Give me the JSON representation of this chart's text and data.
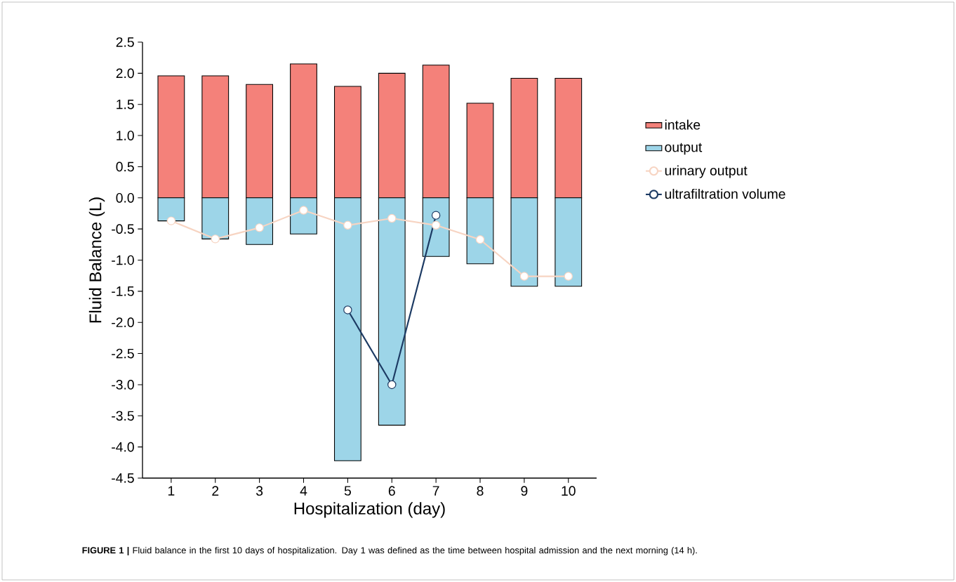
{
  "chart_data": {
    "type": "bar",
    "stacked": true,
    "xlabel": "Hospitalization (day)",
    "ylabel": "Fluid Balance (L)",
    "categories": [
      "1",
      "2",
      "3",
      "4",
      "5",
      "6",
      "7",
      "8",
      "9",
      "10"
    ],
    "series": [
      {
        "name": "intake",
        "color": "#f4817a",
        "values": [
          1.96,
          1.96,
          1.82,
          2.15,
          1.79,
          2.0,
          2.13,
          1.52,
          1.92,
          1.92
        ]
      },
      {
        "name": "output",
        "color": "#9dd5e8",
        "values": [
          -0.37,
          -0.66,
          -0.75,
          -0.58,
          -4.22,
          -3.65,
          -0.94,
          -1.06,
          -1.42,
          -1.42
        ]
      },
      {
        "name": "urinary output",
        "type": "line",
        "color": "#f7d4c2",
        "values": [
          -0.37,
          -0.66,
          -0.48,
          -0.2,
          -0.44,
          -0.33,
          -0.44,
          -0.67,
          -1.26,
          -1.26
        ]
      },
      {
        "name": "ultrafiltration volume",
        "type": "line",
        "color": "#1c3a63",
        "values": [
          null,
          null,
          null,
          null,
          -1.8,
          -3.0,
          -0.28,
          null,
          null,
          null
        ]
      }
    ],
    "ylim": [
      -4.5,
      2.5
    ],
    "yticks": [
      {
        "value": 2.5,
        "label": "2.5"
      },
      {
        "value": 2.0,
        "label": "2.0"
      },
      {
        "value": 1.5,
        "label": "1.5"
      },
      {
        "value": 1.0,
        "label": "1.0"
      },
      {
        "value": 0.5,
        "label": "0.5"
      },
      {
        "value": 0.0,
        "label": "0.0"
      },
      {
        "value": -0.5,
        "label": "-0.5"
      },
      {
        "value": -1.0,
        "label": "-1.0"
      },
      {
        "value": -1.5,
        "label": "-1.5"
      },
      {
        "value": -2.0,
        "label": "-2.0"
      },
      {
        "value": -2.5,
        "label": "-2.5"
      },
      {
        "value": -3.0,
        "label": "-3.0"
      },
      {
        "value": -3.5,
        "label": "-3.5"
      },
      {
        "value": -4.0,
        "label": "-4.0"
      },
      {
        "value": -4.5,
        "label": "-4.5"
      }
    ],
    "marker": "circle",
    "line_style": "solid",
    "grid": false,
    "legend": "right",
    "annotations": [
      "**FIGURE 1 |** Fluid balance in the first 10 days of hospitalization. Day 1 was defined as the time between hospital admission and the next morning (14 h)."
    ]
  }
}
